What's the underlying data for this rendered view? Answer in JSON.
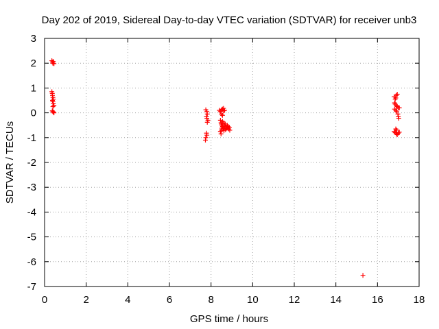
{
  "chart_data": {
    "type": "scatter",
    "title": "Day 202 of 2019, Sidereal Day-to-day VTEC variation (SDTVAR) for receiver unb3",
    "xlabel": "GPS time / hours",
    "ylabel": "SDTVAR / TECUs",
    "xlim": [
      0,
      18
    ],
    "ylim": [
      -7,
      3
    ],
    "xticks": [
      "0",
      "2",
      "4",
      "6",
      "8",
      "10",
      "12",
      "14",
      "16",
      "18"
    ],
    "yticks": [
      "3",
      "2",
      "1",
      "0",
      "-1",
      "-2",
      "-3",
      "-4",
      "-5",
      "-6",
      "-7"
    ],
    "grid": true,
    "marker": "plus",
    "color": "#ff0000",
    "series": [
      {
        "points": [
          [
            0.35,
            2.1
          ],
          [
            0.38,
            2.05
          ],
          [
            0.4,
            2.0
          ],
          [
            0.42,
            2.07
          ],
          [
            0.45,
            1.98
          ],
          [
            0.35,
            0.85
          ],
          [
            0.37,
            0.78
          ],
          [
            0.38,
            0.7
          ],
          [
            0.4,
            0.62
          ],
          [
            0.42,
            0.55
          ],
          [
            0.38,
            0.5
          ],
          [
            0.4,
            0.45
          ],
          [
            0.42,
            0.38
          ],
          [
            0.45,
            0.3
          ],
          [
            0.4,
            0.25
          ],
          [
            0.37,
            0.08
          ],
          [
            0.4,
            0.05
          ],
          [
            0.43,
            0.02
          ],
          [
            0.45,
            0.0
          ],
          [
            7.75,
            0.12
          ],
          [
            7.8,
            0.05
          ],
          [
            7.82,
            -0.05
          ],
          [
            7.78,
            -0.15
          ],
          [
            7.8,
            -0.22
          ],
          [
            7.85,
            -0.3
          ],
          [
            7.82,
            -0.38
          ],
          [
            7.78,
            -0.82
          ],
          [
            7.8,
            -0.9
          ],
          [
            7.75,
            -1.0
          ],
          [
            7.73,
            -1.1
          ],
          [
            8.4,
            0.1
          ],
          [
            8.45,
            0.05
          ],
          [
            8.5,
            0.12
          ],
          [
            8.55,
            0.15
          ],
          [
            8.6,
            0.18
          ],
          [
            8.65,
            0.1
          ],
          [
            8.5,
            -0.05
          ],
          [
            8.55,
            -0.1
          ],
          [
            8.6,
            0.08
          ],
          [
            8.45,
            -0.3
          ],
          [
            8.48,
            -0.4
          ],
          [
            8.5,
            -0.45
          ],
          [
            8.52,
            -0.5
          ],
          [
            8.55,
            -0.55
          ],
          [
            8.58,
            -0.6
          ],
          [
            8.6,
            -0.65
          ],
          [
            8.5,
            -0.7
          ],
          [
            8.45,
            -0.75
          ],
          [
            8.48,
            -0.85
          ],
          [
            8.6,
            -0.4
          ],
          [
            8.65,
            -0.5
          ],
          [
            8.7,
            -0.55
          ],
          [
            8.72,
            -0.6
          ],
          [
            8.75,
            -0.62
          ],
          [
            8.8,
            -0.58
          ],
          [
            8.85,
            -0.65
          ],
          [
            8.9,
            -0.7
          ],
          [
            8.82,
            -0.55
          ],
          [
            8.68,
            -0.45
          ],
          [
            8.55,
            -0.35
          ],
          [
            8.62,
            -0.72
          ],
          [
            8.7,
            -0.68
          ],
          [
            8.78,
            -0.5
          ],
          [
            8.88,
            -0.6
          ],
          [
            8.52,
            -0.62
          ],
          [
            16.8,
            0.65
          ],
          [
            16.85,
            0.55
          ],
          [
            16.88,
            0.6
          ],
          [
            16.9,
            0.7
          ],
          [
            16.95,
            0.75
          ],
          [
            16.82,
            0.4
          ],
          [
            16.85,
            0.35
          ],
          [
            16.9,
            0.3
          ],
          [
            16.95,
            0.25
          ],
          [
            17.0,
            0.2
          ],
          [
            16.82,
            0.15
          ],
          [
            16.88,
            0.1
          ],
          [
            16.92,
            0.05
          ],
          [
            16.98,
            -0.05
          ],
          [
            17.0,
            -0.15
          ],
          [
            17.02,
            -0.22
          ],
          [
            17.05,
            0.2
          ],
          [
            16.8,
            -0.75
          ],
          [
            16.85,
            -0.8
          ],
          [
            16.9,
            -0.85
          ],
          [
            16.95,
            -0.88
          ],
          [
            17.0,
            -0.82
          ],
          [
            17.05,
            -0.78
          ],
          [
            16.88,
            -0.65
          ],
          [
            16.92,
            -0.7
          ],
          [
            15.3,
            -6.55
          ]
        ]
      }
    ]
  }
}
